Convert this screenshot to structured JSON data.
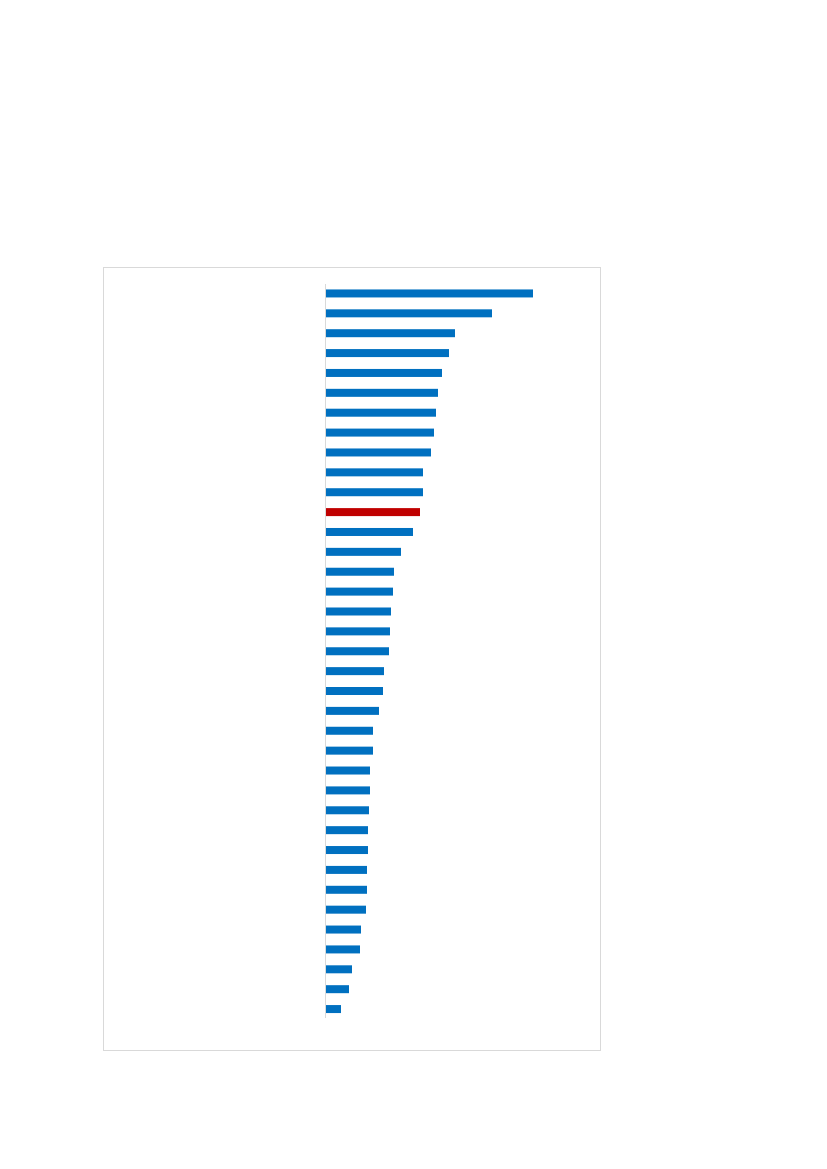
{
  "chart_data": {
    "type": "barh",
    "categories": [
      null,
      null,
      null,
      null,
      null,
      null,
      null,
      null,
      null,
      null,
      null,
      null,
      null,
      null,
      null,
      null,
      null,
      null,
      null,
      null,
      null,
      null,
      null,
      null,
      null,
      null,
      null,
      null,
      null,
      null,
      null,
      null,
      null,
      null,
      null,
      null,
      null
    ],
    "values": [
      207,
      166,
      129,
      123,
      116,
      112,
      110,
      108,
      105,
      97,
      97,
      94,
      87,
      75,
      68,
      67,
      65,
      64,
      63,
      58,
      57,
      53,
      47,
      47,
      44,
      44,
      43,
      42,
      42,
      41,
      41,
      40,
      35,
      34,
      26,
      23,
      15
    ],
    "colors": [
      "#0070c0",
      "#0070c0",
      "#0070c0",
      "#0070c0",
      "#0070c0",
      "#0070c0",
      "#0070c0",
      "#0070c0",
      "#0070c0",
      "#0070c0",
      "#0070c0",
      "#c00000",
      "#0070c0",
      "#0070c0",
      "#0070c0",
      "#0070c0",
      "#0070c0",
      "#0070c0",
      "#0070c0",
      "#0070c0",
      "#0070c0",
      "#0070c0",
      "#0070c0",
      "#0070c0",
      "#0070c0",
      "#0070c0",
      "#0070c0",
      "#0070c0",
      "#0070c0",
      "#0070c0",
      "#0070c0",
      "#0070c0",
      "#0070c0",
      "#0070c0",
      "#0070c0",
      "#0070c0",
      "#0070c0"
    ],
    "xlim": [
      0,
      250
    ]
  }
}
